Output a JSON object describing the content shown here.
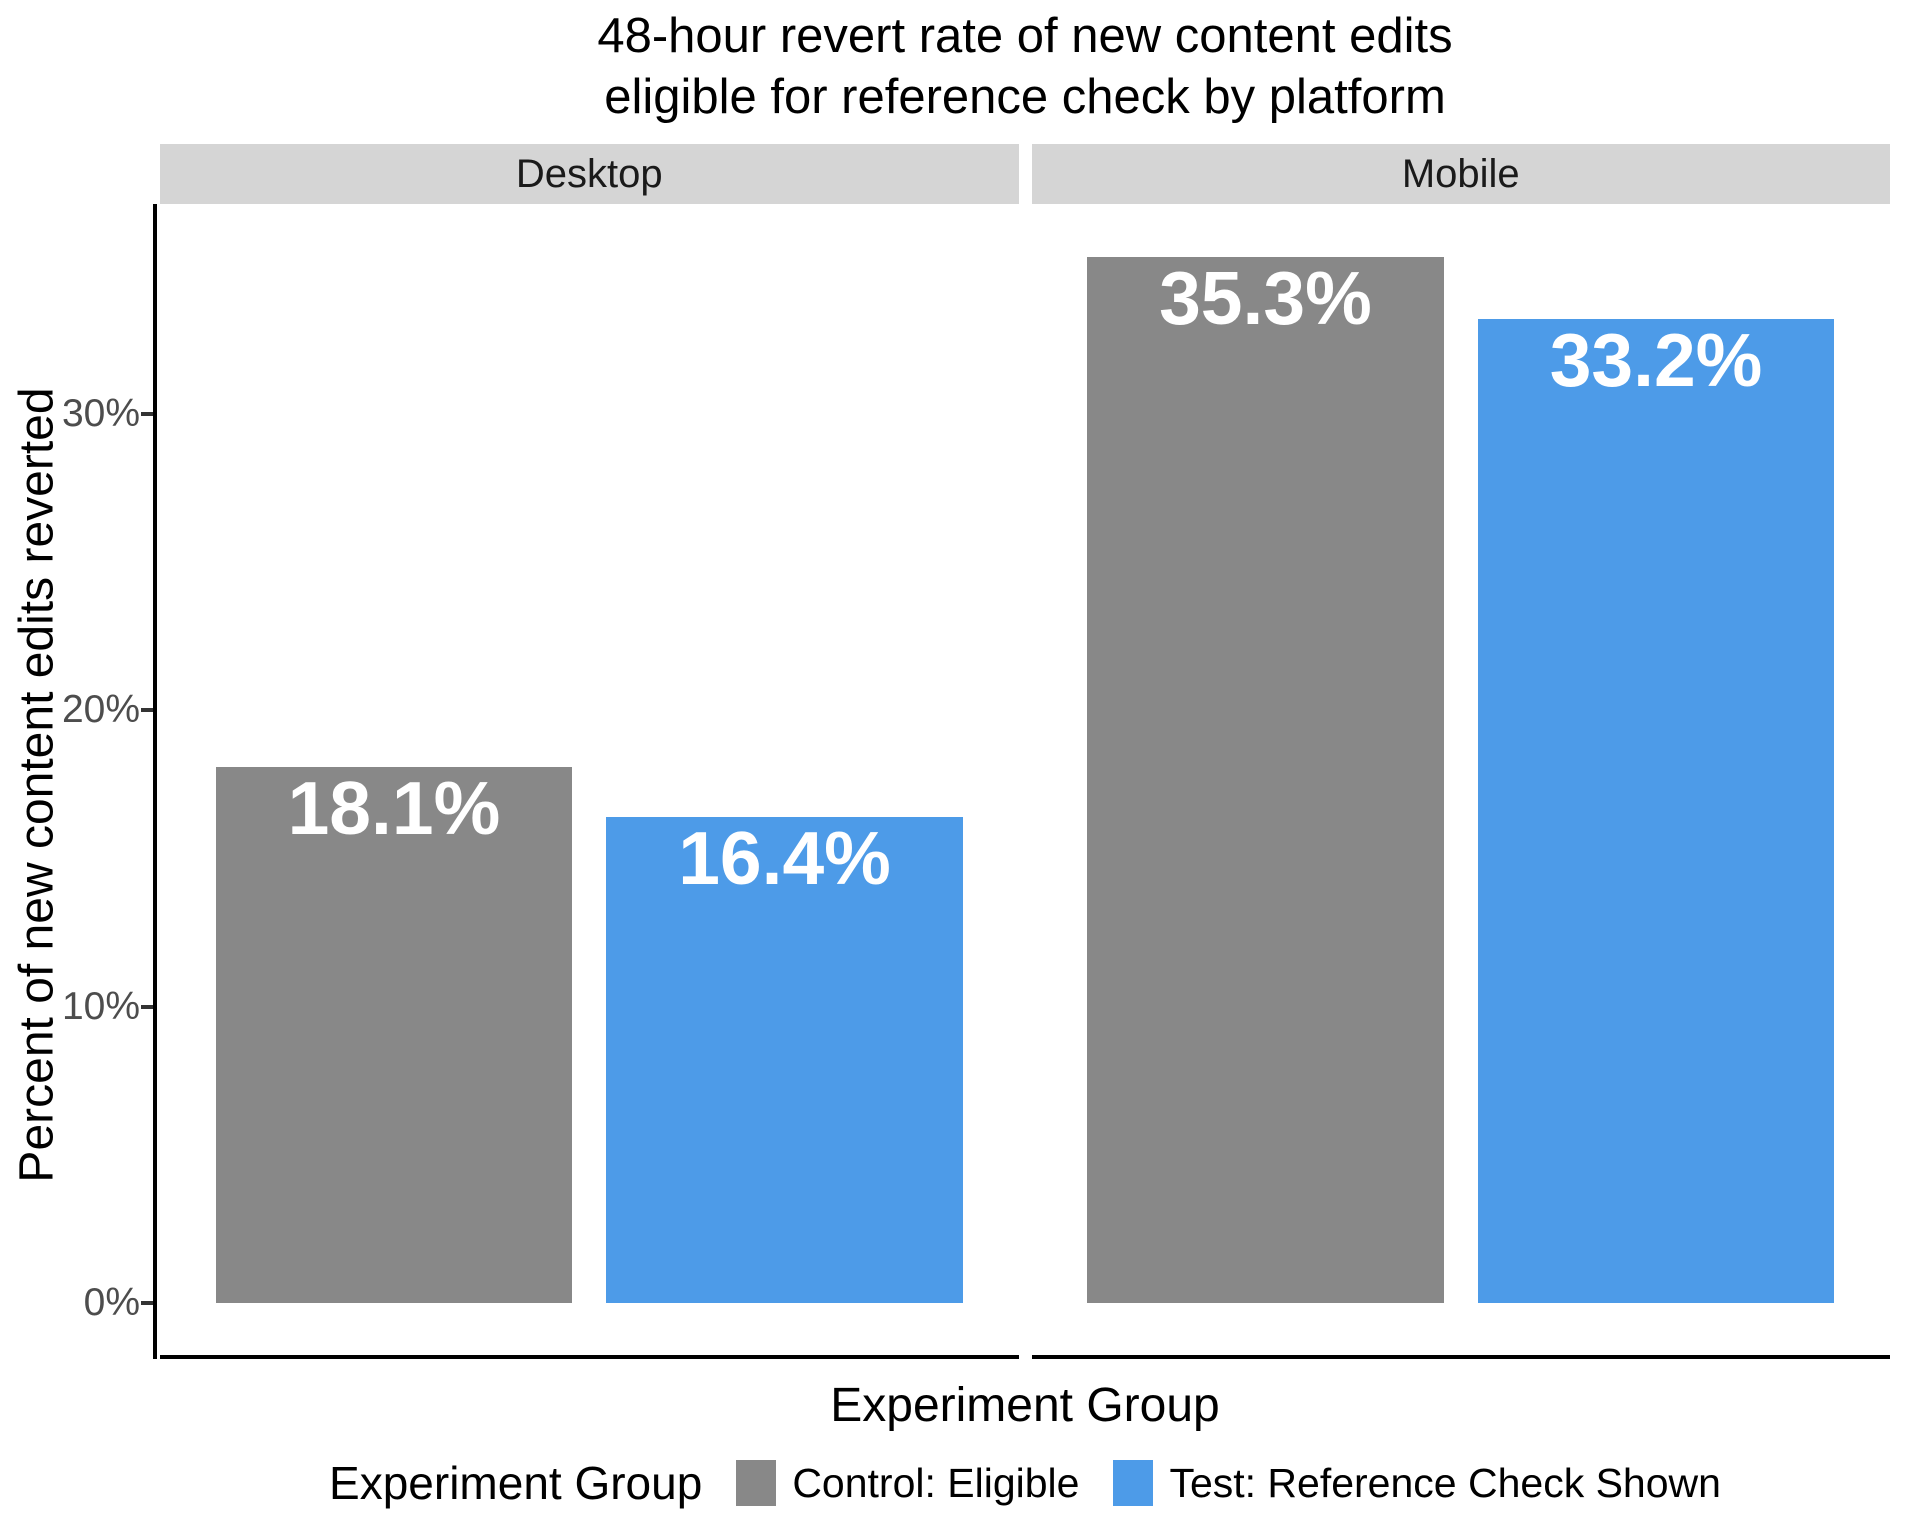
{
  "chart_data": {
    "type": "bar",
    "title": "48-hour revert rate of new content edits eligible for reference check by platform",
    "title_lines": [
      "48-hour revert rate of new content edits",
      "eligible for reference check by platform"
    ],
    "xlabel": "Experiment Group",
    "ylabel": "Percent of new content edits reverted",
    "facets": [
      "Desktop",
      "Mobile"
    ],
    "categories": [
      "Desktop",
      "Mobile"
    ],
    "series": [
      {
        "name": "Control: Eligible",
        "color": "#888888",
        "values": [
          18.1,
          35.3
        ],
        "labels": [
          "18.1%",
          "35.3%"
        ]
      },
      {
        "name": "Test: Reference Check Shown",
        "color": "#4d9be8",
        "values": [
          16.4,
          33.2
        ],
        "labels": [
          "16.4%",
          "33.2%"
        ]
      }
    ],
    "y_ticks": [
      {
        "value": 0,
        "label": "0%"
      },
      {
        "value": 10,
        "label": "10%"
      },
      {
        "value": 20,
        "label": "20%"
      },
      {
        "value": 30,
        "label": "30%"
      }
    ],
    "ylim": [
      0,
      37.1
    ],
    "grid": false,
    "legend": {
      "title": "Experiment Group",
      "position": "bottom"
    }
  },
  "colors": {
    "strip_background": "#d5d5d5",
    "axis_line": "#000000",
    "tick_text": "#4d4d4d",
    "bar_value_text": "#ffffff",
    "panel_background": "#ffffff"
  }
}
